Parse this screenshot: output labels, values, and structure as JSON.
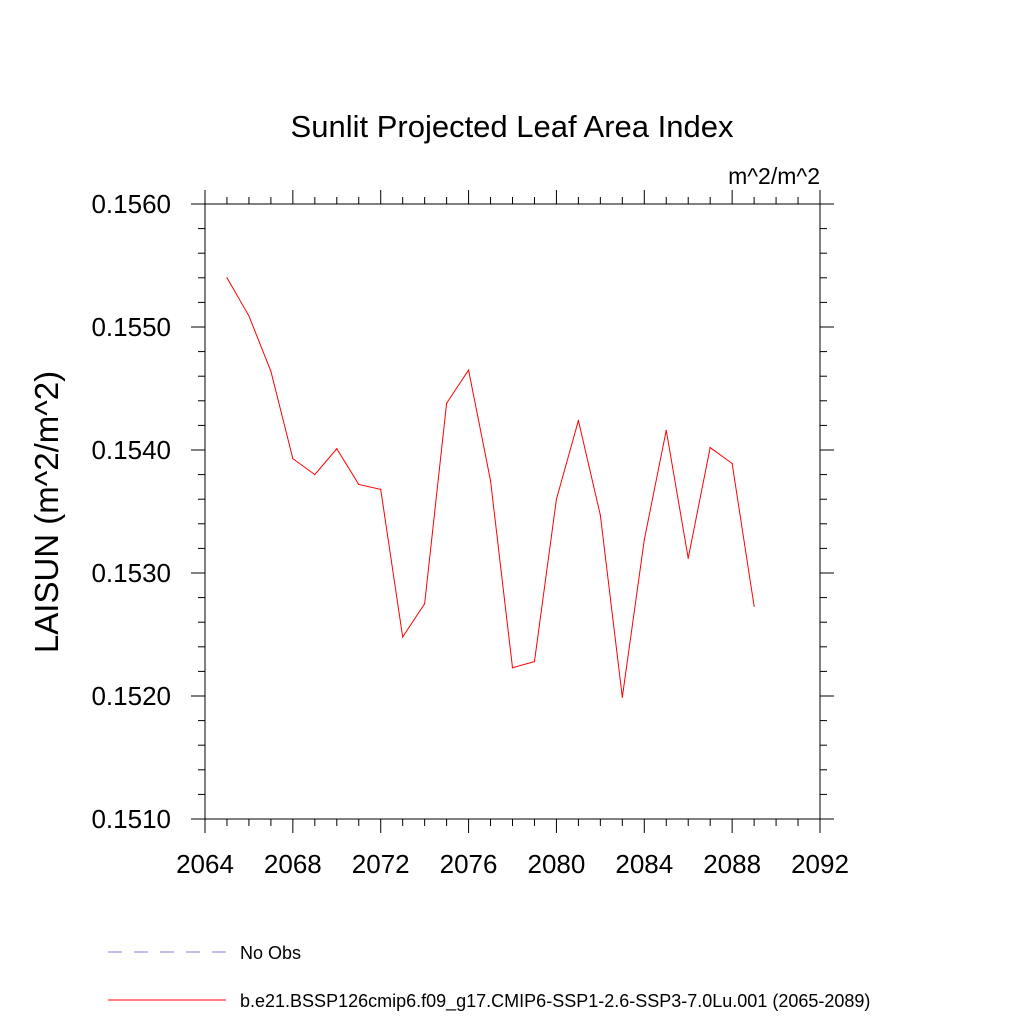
{
  "chart_data": {
    "type": "line",
    "title": "Sunlit Projected Leaf Area Index",
    "units": "m^2/m^2",
    "ylabel": "LAISUN  (m^2/m^2)",
    "xlabel": "",
    "xlim": [
      2064,
      2092
    ],
    "ylim": [
      0.151,
      0.156
    ],
    "xticks": [
      "2064",
      "2068",
      "2072",
      "2076",
      "2080",
      "2084",
      "2088",
      "2092"
    ],
    "yticks": [
      "0.1510",
      "0.1520",
      "0.1530",
      "0.1540",
      "0.1550",
      "0.1560"
    ],
    "grid": false,
    "legend_position": "bottom-left",
    "series": [
      {
        "name": "b.e21.BSSP126cmip6.f09_g17.CMIP6-SSP1-2.6-SSP3-7.0Lu.001 (2065-2089)",
        "color": "#ff0000",
        "style": "solid",
        "x": [
          2065,
          2066,
          2067,
          2068,
          2069,
          2070,
          2071,
          2072,
          2073,
          2074,
          2075,
          2076,
          2077,
          2078,
          2079,
          2080,
          2081,
          2082,
          2083,
          2084,
          2085,
          2086,
          2087,
          2088,
          2089
        ],
        "y": [
          0.1554,
          0.15509,
          0.15464,
          0.15393,
          0.1538,
          0.15401,
          0.15372,
          0.15368,
          0.15248,
          0.15275,
          0.15438,
          0.15465,
          0.15375,
          0.15223,
          0.15228,
          0.1536,
          0.15424,
          0.15347,
          0.15199,
          0.15327,
          0.15416,
          0.15312,
          0.15402,
          0.15389,
          0.15273
        ]
      }
    ],
    "legend": [
      {
        "label": "No Obs",
        "color": "#7f7fcf",
        "style": "dashed"
      },
      {
        "label": "b.e21.BSSP126cmip6.f09_g17.CMIP6-SSP1-2.6-SSP3-7.0Lu.001 (2065-2089)",
        "color": "#ff0000",
        "style": "solid"
      }
    ]
  }
}
